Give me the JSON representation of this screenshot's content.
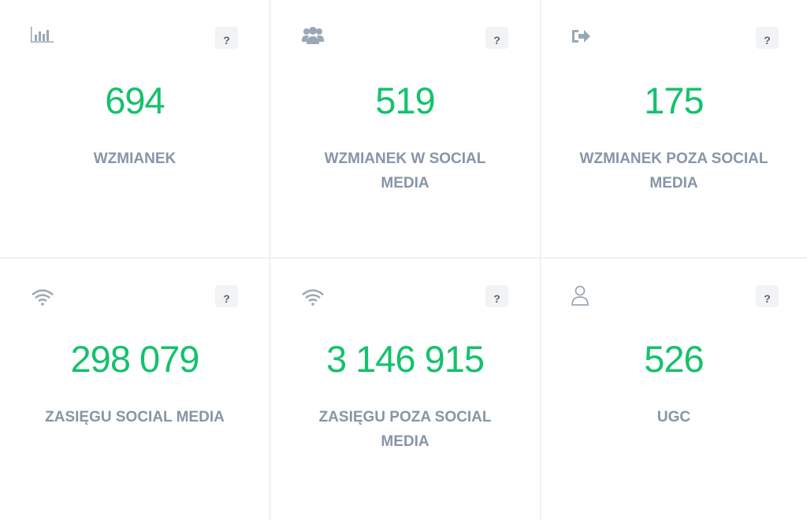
{
  "cards": [
    {
      "value": "694",
      "label": "WZMIANEK",
      "help": "?"
    },
    {
      "value": "519",
      "label": "WZMIANEK W SOCIAL MEDIA",
      "help": "?"
    },
    {
      "value": "175",
      "label": "WZMIANEK POZA SOCIAL MEDIA",
      "help": "?"
    },
    {
      "value": "298 079",
      "label": "ZASIĘGU SOCIAL MEDIA",
      "help": "?"
    },
    {
      "value": "3 146 915",
      "label": "ZASIĘGU POZA SOCIAL MEDIA",
      "help": "?"
    },
    {
      "value": "526",
      "label": "UGC",
      "help": "?"
    }
  ]
}
